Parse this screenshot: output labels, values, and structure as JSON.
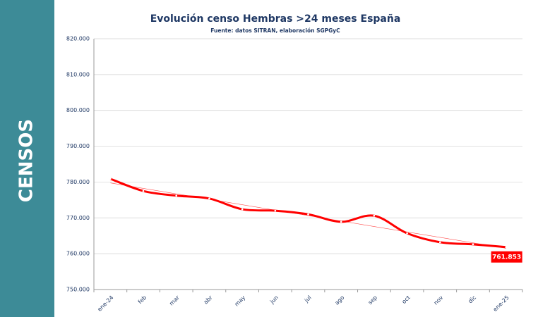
{
  "sidebar": "CENSOS",
  "chart_data": {
    "type": "line",
    "title": "Evolución censo Hembras >24 meses España",
    "subtitle": "Fuente: datos SITRAN, elaboración SGPGyC",
    "categories": [
      "ene-24",
      "feb",
      "mar",
      "abr",
      "may",
      "jun",
      "jul",
      "ago",
      "sep",
      "oct",
      "nov",
      "dic",
      "ene-25"
    ],
    "series": [
      {
        "name": "Hembras >24 meses",
        "color": "#ff0000",
        "values": [
          780900,
          777500,
          776200,
          775400,
          772400,
          772000,
          771000,
          768900,
          770600,
          765700,
          763200,
          762600,
          761853
        ],
        "value_labels": [
          null,
          null,
          null,
          null,
          null,
          null,
          null,
          null,
          null,
          null,
          null,
          null,
          "761.853"
        ]
      }
    ],
    "ylim": [
      750000,
      820000
    ],
    "yticks": [
      {
        "value": 750000,
        "label": "750.000"
      },
      {
        "value": 760000,
        "label": "760.000"
      },
      {
        "value": 770000,
        "label": "770.000"
      },
      {
        "value": 780000,
        "label": "780.000"
      },
      {
        "value": 790000,
        "label": "790.000"
      },
      {
        "value": 800000,
        "label": "800.000"
      },
      {
        "value": 810000,
        "label": "810.000"
      },
      {
        "value": 820000,
        "label": "820.000"
      }
    ],
    "grid": true,
    "trendline": true
  }
}
